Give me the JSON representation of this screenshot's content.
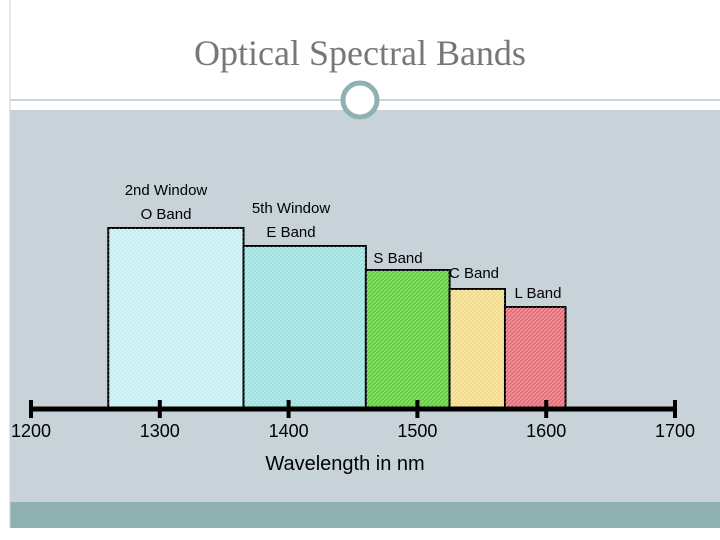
{
  "chart_data": {
    "type": "bands",
    "title": "Optical Spectral Bands",
    "x_label": "Wavelength in nm",
    "xlim": [
      1200,
      1700
    ],
    "xticks": [
      1200,
      1300,
      1400,
      1500,
      1600,
      1700
    ],
    "bands": [
      {
        "label": [
          "2nd Window",
          "O Band"
        ],
        "start": 1260,
        "end": 1365,
        "color": "#c8eef4"
      },
      {
        "label": [
          "5th Window",
          "E Band"
        ],
        "start": 1365,
        "end": 1460,
        "color": "#9fe0df"
      },
      {
        "label": [
          "S Band"
        ],
        "start": 1460,
        "end": 1525,
        "color": "#66cc44"
      },
      {
        "label": [
          "C Band"
        ],
        "start": 1525,
        "end": 1568,
        "color": "#f3dc90"
      },
      {
        "label": [
          "L Band"
        ],
        "start": 1568,
        "end": 1615,
        "color": "#e0707a"
      }
    ]
  }
}
